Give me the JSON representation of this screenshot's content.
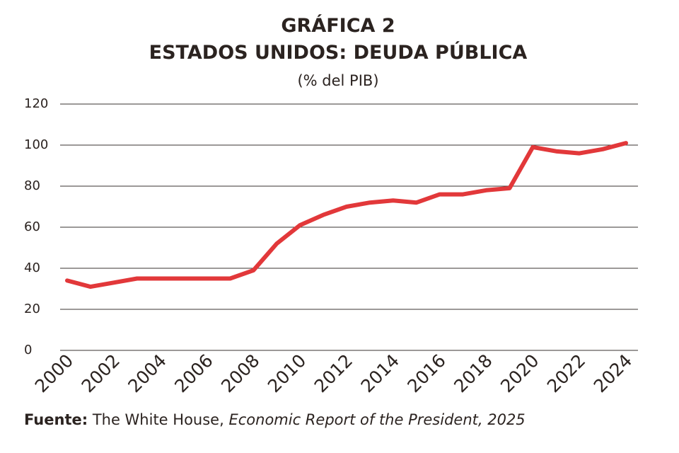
{
  "chart_data": {
    "type": "line",
    "title": "GRÁFICA 2",
    "subtitle": "ESTADOS UNIDOS: DEUDA PÚBLICA",
    "unit_label": "(% del PIB)",
    "x": [
      2000,
      2001,
      2002,
      2003,
      2004,
      2005,
      2006,
      2007,
      2008,
      2009,
      2010,
      2011,
      2012,
      2013,
      2014,
      2015,
      2016,
      2017,
      2018,
      2019,
      2020,
      2021,
      2022,
      2023,
      2024
    ],
    "series": [
      {
        "name": "Deuda pública",
        "color": "#e2383a",
        "values": [
          34,
          31,
          33,
          35,
          35,
          35,
          35,
          35,
          39,
          52,
          61,
          66,
          70,
          72,
          73,
          72,
          76,
          76,
          78,
          79,
          99,
          97,
          96,
          98,
          101
        ]
      }
    ],
    "xlim": [
      2000,
      2024
    ],
    "xticks": [
      2000,
      2002,
      2004,
      2006,
      2008,
      2010,
      2012,
      2014,
      2016,
      2018,
      2020,
      2022,
      2024
    ],
    "ylim": [
      0,
      120
    ],
    "yticks": [
      0,
      20,
      40,
      60,
      80,
      100,
      120
    ],
    "grid": true,
    "source": {
      "label": "Fuente:",
      "text": "The White House,",
      "italic": "Economic Report of the President, 2025"
    }
  }
}
